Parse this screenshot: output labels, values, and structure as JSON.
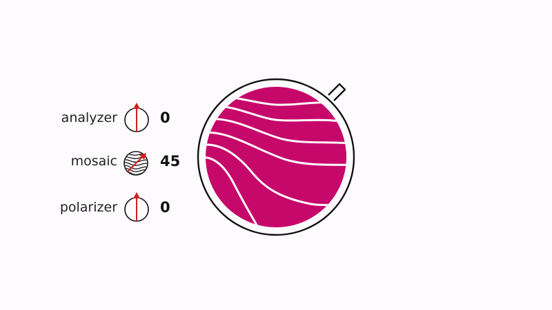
{
  "controls": [
    {
      "id": "analyzer",
      "label": "analyzer",
      "value": "0",
      "angle": 0
    },
    {
      "id": "mosaic",
      "label": "mosaic",
      "value": "45",
      "angle": 45
    },
    {
      "id": "polarizer",
      "label": "polarizer",
      "value": "0",
      "angle": 0
    }
  ],
  "colors": {
    "mosaic_fill": "#c7086b",
    "arrow": "#d01f1f",
    "outline": "#111111",
    "background": "#fdfbfd"
  },
  "icons": {
    "analyzer": "polarizer-disc-icon",
    "mosaic": "mosaic-disc-icon",
    "polarizer": "polarizer-disc-icon",
    "main": "mosaic-viewer-lens"
  }
}
